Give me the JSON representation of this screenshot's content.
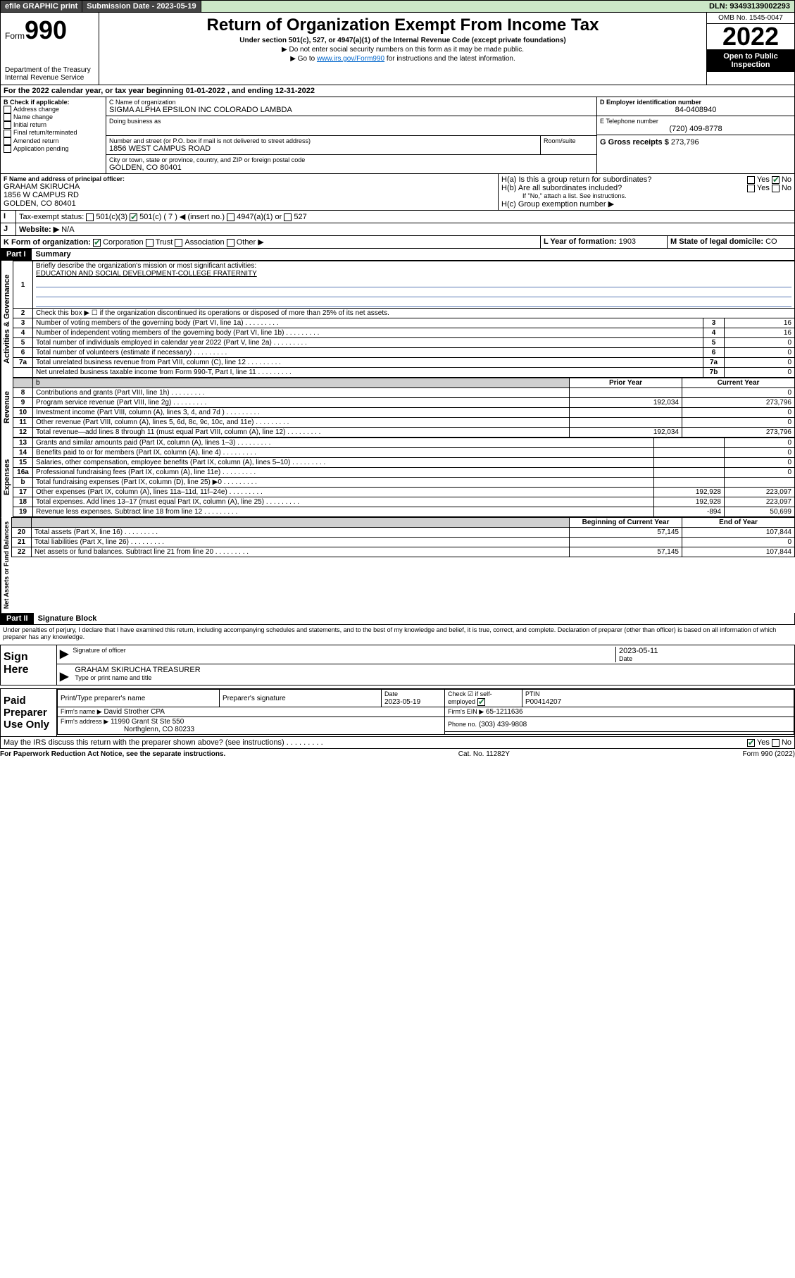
{
  "topbar": {
    "efile": "efile GRAPHIC print",
    "submission_label": "Submission Date - 2023-05-19",
    "dln": "DLN: 93493139002293"
  },
  "header": {
    "form_prefix": "Form",
    "form_no": "990",
    "title": "Return of Organization Exempt From Income Tax",
    "sub1": "Under section 501(c), 527, or 4947(a)(1) of the Internal Revenue Code (except private foundations)",
    "sub2": "▶ Do not enter social security numbers on this form as it may be made public.",
    "sub3_pre": "▶ Go to ",
    "sub3_link": "www.irs.gov/Form990",
    "sub3_post": " for instructions and the latest information.",
    "dept": "Department of the Treasury\nInternal Revenue Service",
    "omb": "OMB No. 1545-0047",
    "year": "2022",
    "open": "Open to Public Inspection"
  },
  "A": {
    "text": "For the 2022 calendar year, or tax year beginning 01-01-2022   , and ending 12-31-2022"
  },
  "B": {
    "label": "B Check if applicable:",
    "opts": [
      "Address change",
      "Name change",
      "Initial return",
      "Final return/terminated",
      "Amended return",
      "Application pending"
    ]
  },
  "C": {
    "name_label": "C Name of organization",
    "name": "SIGMA ALPHA EPSILON INC COLORADO LAMBDA",
    "dba_label": "Doing business as",
    "street_label": "Number and street (or P.O. box if mail is not delivered to street address)",
    "room_label": "Room/suite",
    "street": "1856 WEST CAMPUS ROAD",
    "city_label": "City or town, state or province, country, and ZIP or foreign postal code",
    "city": "GOLDEN, CO  80401"
  },
  "D": {
    "label": "D Employer identification number",
    "value": "84-0408940"
  },
  "E": {
    "label": "E Telephone number",
    "value": "(720) 409-8778"
  },
  "G": {
    "label": "G Gross receipts $",
    "value": "273,796"
  },
  "F": {
    "label": "F Name and address of principal officer:",
    "name": "GRAHAM SKIRUCHA",
    "addr1": "1856 W CAMPUS RD",
    "addr2": "GOLDEN, CO  80401"
  },
  "H": {
    "a": "H(a)  Is this a group return for subordinates?",
    "b": "H(b)  Are all subordinates included?",
    "b_note": "If \"No,\" attach a list. See instructions.",
    "c": "H(c)  Group exemption number ▶",
    "yes": "Yes",
    "no": "No"
  },
  "I": {
    "label": "Tax-exempt status:",
    "o1": "501(c)(3)",
    "o2": "501(c) ( 7 ) ◀ (insert no.)",
    "o3": "4947(a)(1) or",
    "o4": "527"
  },
  "J": {
    "label": "Website: ▶",
    "value": "N/A"
  },
  "K": {
    "label": "K Form of organization:",
    "o1": "Corporation",
    "o2": "Trust",
    "o3": "Association",
    "o4": "Other ▶"
  },
  "L": {
    "label": "L Year of formation:",
    "value": "1903"
  },
  "M": {
    "label": "M State of legal domicile:",
    "value": "CO"
  },
  "part1": {
    "hdr": "Part I",
    "title": "Summary"
  },
  "vtabs": {
    "gov": "Activities & Governance",
    "rev": "Revenue",
    "exp": "Expenses",
    "net": "Net Assets or Fund Balances"
  },
  "summary": {
    "l1": "Briefly describe the organization's mission or most significant activities:",
    "l1v": "EDUCATION AND SOCIAL DEVELOPMENT-COLLEGE FRATERNITY",
    "l2": "Check this box ▶ ☐  if the organization discontinued its operations or disposed of more than 25% of its net assets.",
    "rows_gov": [
      {
        "n": "3",
        "t": "Number of voting members of the governing body (Part VI, line 1a)",
        "k": "3",
        "v": "16"
      },
      {
        "n": "4",
        "t": "Number of independent voting members of the governing body (Part VI, line 1b)",
        "k": "4",
        "v": "16"
      },
      {
        "n": "5",
        "t": "Total number of individuals employed in calendar year 2022 (Part V, line 2a)",
        "k": "5",
        "v": "0"
      },
      {
        "n": "6",
        "t": "Total number of volunteers (estimate if necessary)",
        "k": "6",
        "v": "0"
      },
      {
        "n": "7a",
        "t": "Total unrelated business revenue from Part VIII, column (C), line 12",
        "k": "7a",
        "v": "0"
      },
      {
        "n": "",
        "t": "Net unrelated business taxable income from Form 990-T, Part I, line 11",
        "k": "7b",
        "v": "0"
      }
    ],
    "col_prior": "Prior Year",
    "col_curr": "Current Year",
    "rows_rev": [
      {
        "n": "8",
        "t": "Contributions and grants (Part VIII, line 1h)",
        "p": "",
        "c": "0"
      },
      {
        "n": "9",
        "t": "Program service revenue (Part VIII, line 2g)",
        "p": "192,034",
        "c": "273,796"
      },
      {
        "n": "10",
        "t": "Investment income (Part VIII, column (A), lines 3, 4, and 7d )",
        "p": "",
        "c": "0"
      },
      {
        "n": "11",
        "t": "Other revenue (Part VIII, column (A), lines 5, 6d, 8c, 9c, 10c, and 11e)",
        "p": "",
        "c": "0"
      },
      {
        "n": "12",
        "t": "Total revenue—add lines 8 through 11 (must equal Part VIII, column (A), line 12)",
        "p": "192,034",
        "c": "273,796"
      }
    ],
    "rows_exp": [
      {
        "n": "13",
        "t": "Grants and similar amounts paid (Part IX, column (A), lines 1–3)",
        "p": "",
        "c": "0"
      },
      {
        "n": "14",
        "t": "Benefits paid to or for members (Part IX, column (A), line 4)",
        "p": "",
        "c": "0"
      },
      {
        "n": "15",
        "t": "Salaries, other compensation, employee benefits (Part IX, column (A), lines 5–10)",
        "p": "",
        "c": "0"
      },
      {
        "n": "16a",
        "t": "Professional fundraising fees (Part IX, column (A), line 11e)",
        "p": "",
        "c": "0"
      },
      {
        "n": "b",
        "t": "Total fundraising expenses (Part IX, column (D), line 25) ▶0",
        "p": "—",
        "c": "—"
      },
      {
        "n": "17",
        "t": "Other expenses (Part IX, column (A), lines 11a–11d, 11f–24e)",
        "p": "192,928",
        "c": "223,097"
      },
      {
        "n": "18",
        "t": "Total expenses. Add lines 13–17 (must equal Part IX, column (A), line 25)",
        "p": "192,928",
        "c": "223,097"
      },
      {
        "n": "19",
        "t": "Revenue less expenses. Subtract line 18 from line 12",
        "p": "-894",
        "c": "50,699"
      }
    ],
    "col_beg": "Beginning of Current Year",
    "col_end": "End of Year",
    "rows_net": [
      {
        "n": "20",
        "t": "Total assets (Part X, line 16)",
        "p": "57,145",
        "c": "107,844"
      },
      {
        "n": "21",
        "t": "Total liabilities (Part X, line 26)",
        "p": "",
        "c": "0"
      },
      {
        "n": "22",
        "t": "Net assets or fund balances. Subtract line 21 from line 20",
        "p": "57,145",
        "c": "107,844"
      }
    ]
  },
  "part2": {
    "hdr": "Part II",
    "title": "Signature Block"
  },
  "penalty": "Under penalties of perjury, I declare that I have examined this return, including accompanying schedules and statements, and to the best of my knowledge and belief, it is true, correct, and complete. Declaration of preparer (other than officer) is based on all information of which preparer has any knowledge.",
  "sign": {
    "here": "Sign Here",
    "sig_label": "Signature of officer",
    "date_label": "Date",
    "date": "2023-05-11",
    "name": "GRAHAM SKIRUCHA  TREASURER",
    "name_label": "Type or print name and title"
  },
  "paid": {
    "title": "Paid Preparer Use Only",
    "h1": "Print/Type preparer's name",
    "h2": "Preparer's signature",
    "h3": "Date",
    "h4": "Check ☑ if self-employed",
    "h5": "PTIN",
    "date": "2023-05-19",
    "ptin": "P00414207",
    "firm_label": "Firm's name  ▶",
    "firm": "David Strother CPA",
    "ein_label": "Firm's EIN ▶",
    "ein": "65-1211636",
    "addr_label": "Firm's address ▶",
    "addr1": "11990 Grant St Ste 550",
    "addr2": "Northglenn, CO  80233",
    "phone_label": "Phone no.",
    "phone": "(303) 439-9808"
  },
  "discuss": "May the IRS discuss this return with the preparer shown above? (see instructions)",
  "footer": {
    "l": "For Paperwork Reduction Act Notice, see the separate instructions.",
    "c": "Cat. No. 11282Y",
    "r": "Form 990 (2022)"
  }
}
